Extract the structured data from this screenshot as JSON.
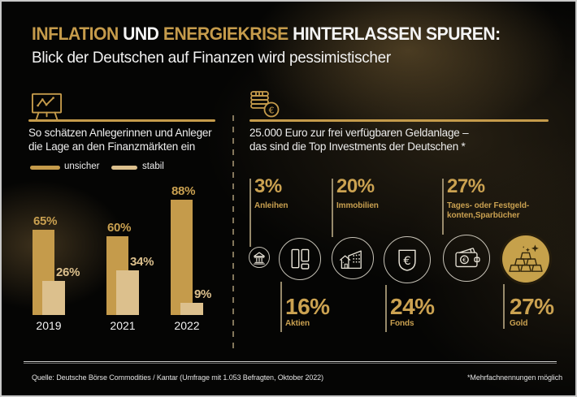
{
  "header": {
    "title_parts": [
      {
        "text": "INFLATION ",
        "color": "#C59B4B"
      },
      {
        "text": "UND ",
        "color": "#F4F4F4"
      },
      {
        "text": "ENERGIEKRISE ",
        "color": "#C59B4B"
      },
      {
        "text": "HINTERLASSEN SPUREN:",
        "color": "#F4F4F4"
      }
    ],
    "subtitle": "Blick der Deutschen auf Finanzen wird pessimistischer"
  },
  "left_section": {
    "icon": "chart-board-icon",
    "title_line1": "So schätzen Anlegerinnen und Anleger",
    "title_line2": "die Lage an den Finanzmärkten ein",
    "legend": [
      {
        "label": "unsicher",
        "color": "#C59B4B"
      },
      {
        "label": "stabil",
        "color": "#DCC08D"
      }
    ]
  },
  "right_section": {
    "icon": "coins-euro-icon",
    "title_line1": "25.000 Euro zur frei verfügbaren Geldanlage –",
    "title_line2": "das sind die Top Investments der Deutschen *",
    "stats_top": [
      {
        "pct": "3%",
        "label": "Anleihen",
        "icon": "bank-icon"
      },
      {
        "pct": "20%",
        "label": "Immobilien",
        "icon": "building-icon"
      },
      {
        "pct": "27%",
        "label": "Tages- oder Festgeld-",
        "label2": "konten,Sparbücher",
        "icon": "wallet-icon"
      }
    ],
    "stats_bottom": [
      {
        "pct": "16%",
        "label": "Aktien",
        "icon": "stocks-icon"
      },
      {
        "pct": "24%",
        "label": "Fonds",
        "icon": "fonds-euro-icon"
      },
      {
        "pct": "27%",
        "label": "Gold",
        "icon": "gold-bars-icon"
      }
    ]
  },
  "chart_data": [
    {
      "type": "bar",
      "title": "So schätzen Anlegerinnen und Anleger die Lage an den Finanzmärkten ein",
      "categories": [
        "2019",
        "2021",
        "2022"
      ],
      "series": [
        {
          "name": "unsicher",
          "values": [
            65,
            60,
            88
          ],
          "color": "#C59B4B"
        },
        {
          "name": "stabil",
          "values": [
            26,
            34,
            9
          ],
          "color": "#DCC08D"
        }
      ],
      "value_suffix": "%",
      "ylim": [
        0,
        100
      ],
      "grid": false,
      "legend_position": "top"
    },
    {
      "type": "bar",
      "title": "25.000 Euro zur frei verfügbaren Geldanlage – das sind die Top Investments der Deutschen *",
      "categories": [
        "Anleihen",
        "Immobilien",
        "Tages- oder Festgeldkonten, Sparbücher",
        "Aktien",
        "Fonds",
        "Gold"
      ],
      "values": [
        3,
        20,
        27,
        16,
        24,
        27
      ],
      "value_suffix": "%"
    }
  ],
  "footer": {
    "source": "Quelle: Deutsche Börse Commodities / Kantar (Umfrage mit 1.053 Befragten, Oktober 2022)",
    "note": "*Mehrfachnennungen möglich"
  },
  "colors": {
    "gold": "#C59B4B",
    "tan": "#DCC08D",
    "white": "#F2F2F2",
    "background": "#050504",
    "gold_circle_fill": "#C6A14B"
  }
}
